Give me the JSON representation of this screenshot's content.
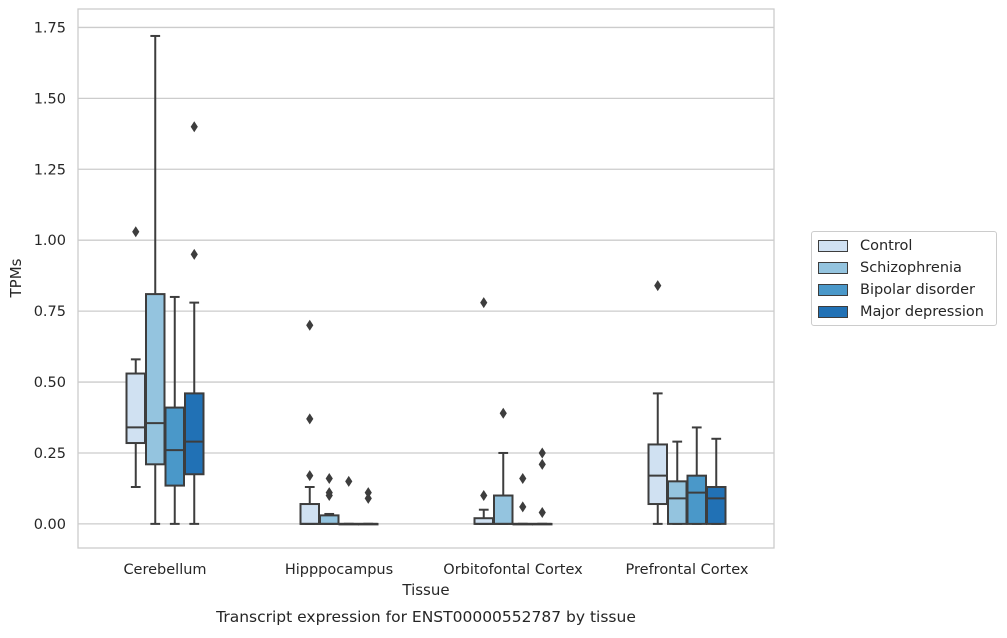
{
  "chart_data": {
    "type": "box",
    "title": "",
    "caption": "Transcript expression for ENST00000552787 by tissue",
    "xlabel": "Tissue",
    "ylabel": "TPMs",
    "ylim": [
      -0.085,
      1.815
    ],
    "yticks": [
      "0.00",
      "0.25",
      "0.50",
      "0.75",
      "1.00",
      "1.25",
      "1.50",
      "1.75"
    ],
    "ytick_values": [
      0,
      0.25,
      0.5,
      0.75,
      1.0,
      1.25,
      1.5,
      1.75
    ],
    "grid": "horizontal",
    "legend_position": "right",
    "categories": [
      "Cerebellum",
      "Hipppocampus",
      "Orbitofontal Cortex",
      "Prefrontal Cortex"
    ],
    "series": [
      {
        "name": "Control",
        "color": "#d0e1f2",
        "boxes": [
          {
            "q1": 0.285,
            "median": 0.34,
            "q3": 0.53,
            "whisker_low": 0.13,
            "whisker_high": 0.58,
            "outliers": [
              1.03
            ]
          },
          {
            "q1": 0.0,
            "median": 0.0,
            "q3": 0.07,
            "whisker_low": 0.0,
            "whisker_high": 0.13,
            "outliers": [
              0.7,
              0.37,
              0.17
            ]
          },
          {
            "q1": 0.0,
            "median": 0.0,
            "q3": 0.02,
            "whisker_low": 0.0,
            "whisker_high": 0.05,
            "outliers": [
              0.78,
              0.1
            ]
          },
          {
            "q1": 0.07,
            "median": 0.17,
            "q3": 0.28,
            "whisker_low": 0.0,
            "whisker_high": 0.46,
            "outliers": [
              0.84
            ]
          }
        ]
      },
      {
        "name": "Schizophrenia",
        "color": "#94c4df",
        "boxes": [
          {
            "q1": 0.21,
            "median": 0.355,
            "q3": 0.81,
            "whisker_low": 0.0,
            "whisker_high": 1.72,
            "outliers": []
          },
          {
            "q1": 0.0,
            "median": 0.0,
            "q3": 0.03,
            "whisker_low": 0.0,
            "whisker_high": 0.035,
            "outliers": [
              0.16,
              0.11,
              0.1
            ]
          },
          {
            "q1": 0.0,
            "median": 0.0,
            "q3": 0.1,
            "whisker_low": 0.0,
            "whisker_high": 0.25,
            "outliers": [
              0.39
            ]
          },
          {
            "q1": 0.0,
            "median": 0.09,
            "q3": 0.15,
            "whisker_low": 0.0,
            "whisker_high": 0.29,
            "outliers": []
          }
        ]
      },
      {
        "name": "Bipolar disorder",
        "color": "#4a98c9",
        "boxes": [
          {
            "q1": 0.135,
            "median": 0.26,
            "q3": 0.41,
            "whisker_low": 0.0,
            "whisker_high": 0.8,
            "outliers": []
          },
          {
            "q1": 0.0,
            "median": 0.0,
            "q3": 0.0,
            "whisker_low": 0.0,
            "whisker_high": 0.0,
            "outliers": [
              0.15
            ]
          },
          {
            "q1": 0.0,
            "median": 0.0,
            "q3": 0.0,
            "whisker_low": 0.0,
            "whisker_high": 0.0,
            "outliers": [
              0.16,
              0.06
            ]
          },
          {
            "q1": 0.0,
            "median": 0.11,
            "q3": 0.17,
            "whisker_low": 0.0,
            "whisker_high": 0.34,
            "outliers": []
          }
        ]
      },
      {
        "name": "Major depression",
        "color": "#2171b5",
        "boxes": [
          {
            "q1": 0.175,
            "median": 0.29,
            "q3": 0.46,
            "whisker_low": 0.0,
            "whisker_high": 0.78,
            "outliers": [
              1.4,
              0.95
            ]
          },
          {
            "q1": 0.0,
            "median": 0.0,
            "q3": 0.0,
            "whisker_low": 0.0,
            "whisker_high": 0.0,
            "outliers": [
              0.11,
              0.09
            ]
          },
          {
            "q1": 0.0,
            "median": 0.0,
            "q3": 0.0,
            "whisker_low": 0.0,
            "whisker_high": 0.0,
            "outliers": [
              0.25,
              0.21,
              0.04
            ]
          },
          {
            "q1": 0.0,
            "median": 0.09,
            "q3": 0.13,
            "whisker_low": 0.0,
            "whisker_high": 0.3,
            "outliers": []
          }
        ]
      }
    ]
  }
}
